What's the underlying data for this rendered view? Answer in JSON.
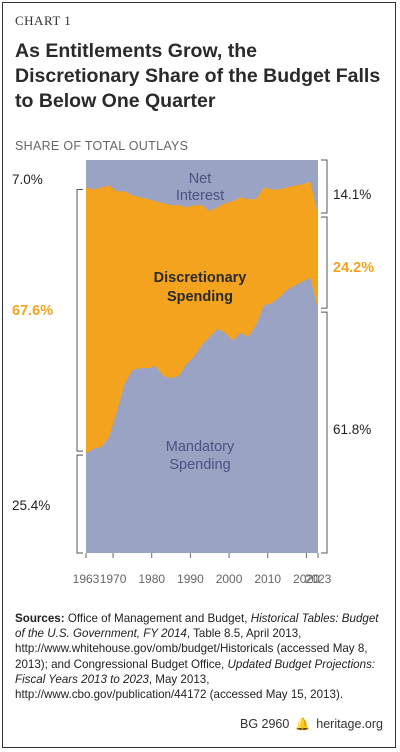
{
  "chart_number": "CHART 1",
  "title": "As Entitlements Grow, the Discretionary Share of the Budget Falls to Below One Quarter",
  "subtitle": "SHARE OF TOTAL OUTLAYS",
  "footer": {
    "bg": "BG 2960",
    "site": "heritage.org",
    "icon": "bell-icon"
  },
  "sources": {
    "label": "Sources:",
    "p1": "Office of Management and Budget,",
    "t1": "Historical Tables: Budget of the U.S. Government, FY 2014",
    "p2": ", Table 8.5, April 2013, http://www.whitehouse.gov/omb/budget/Historicals (accessed May 8, 2013); and Congressional Budget Office,",
    "t2": "Updated Budget Projections: Fiscal Years 2013 to 2023",
    "p3": ", May 2013, http://www.cbo.gov/publication/44172 (accessed May 15, 2013)."
  },
  "colors": {
    "mandatory": "#9aa3c4",
    "discretionary": "#f4a31f",
    "net_interest": "#9aa3c4",
    "orange_text": "#f4a31f"
  },
  "chart_data": {
    "type": "area",
    "stacked": true,
    "ylim": [
      0,
      100
    ],
    "x_ticks": [
      "1963",
      "1970",
      "1980",
      "1990",
      "2000",
      "2010",
      "2020",
      "2023"
    ],
    "x": [
      1963,
      1965,
      1967,
      1969,
      1971,
      1973,
      1975,
      1977,
      1979,
      1981,
      1983,
      1985,
      1987,
      1989,
      1991,
      1993,
      1995,
      1997,
      1999,
      2001,
      2003,
      2005,
      2007,
      2009,
      2011,
      2013,
      2015,
      2017,
      2019,
      2021,
      2023
    ],
    "series": [
      {
        "name": "Mandatory Spending",
        "values": [
          25.4,
          26.5,
          27,
          29.5,
          36,
          43,
          46.5,
          47,
          47,
          47.5,
          45,
          44.5,
          45,
          48,
          50,
          53,
          55,
          57,
          56,
          54,
          56,
          55,
          58,
          63,
          63.5,
          65,
          67,
          68,
          69,
          70,
          61.8
        ]
      },
      {
        "name": "Discretionary Spending",
        "values": [
          67.6,
          66,
          66,
          64,
          56,
          49,
          44.5,
          43.5,
          43,
          42,
          44,
          44,
          43.5,
          40,
          38.5,
          35.5,
          32,
          31,
          33,
          35.5,
          34.5,
          35,
          32,
          30,
          29,
          27.5,
          26,
          25.5,
          24.8,
          24.5,
          24.2
        ]
      },
      {
        "name": "Net Interest",
        "values": [
          7.0,
          7.5,
          7,
          6.5,
          8,
          8,
          9,
          9.5,
          10,
          10.5,
          11,
          11.5,
          11.5,
          12,
          11.5,
          11.5,
          13,
          12,
          11,
          10.5,
          9.5,
          10,
          10,
          7,
          7.5,
          7.5,
          7,
          6.5,
          6.2,
          5.5,
          14.1
        ]
      }
    ],
    "labels": {
      "mandatory": "Mandatory Spending",
      "discretionary": "Discretionary Spending",
      "net_interest": "Net Interest",
      "mandatory_1": "Mandatory",
      "mandatory_2": "Spending",
      "discretionary_1": "Discretionary",
      "discretionary_2": "Spending",
      "net_1": "Net",
      "net_2": "Interest"
    },
    "annotations_left": {
      "net_interest": "7.0%",
      "discretionary": "67.6%",
      "mandatory": "25.4%"
    },
    "annotations_right": {
      "net_interest": "14.1%",
      "discretionary": "24.2%",
      "mandatory": "61.8%"
    }
  }
}
